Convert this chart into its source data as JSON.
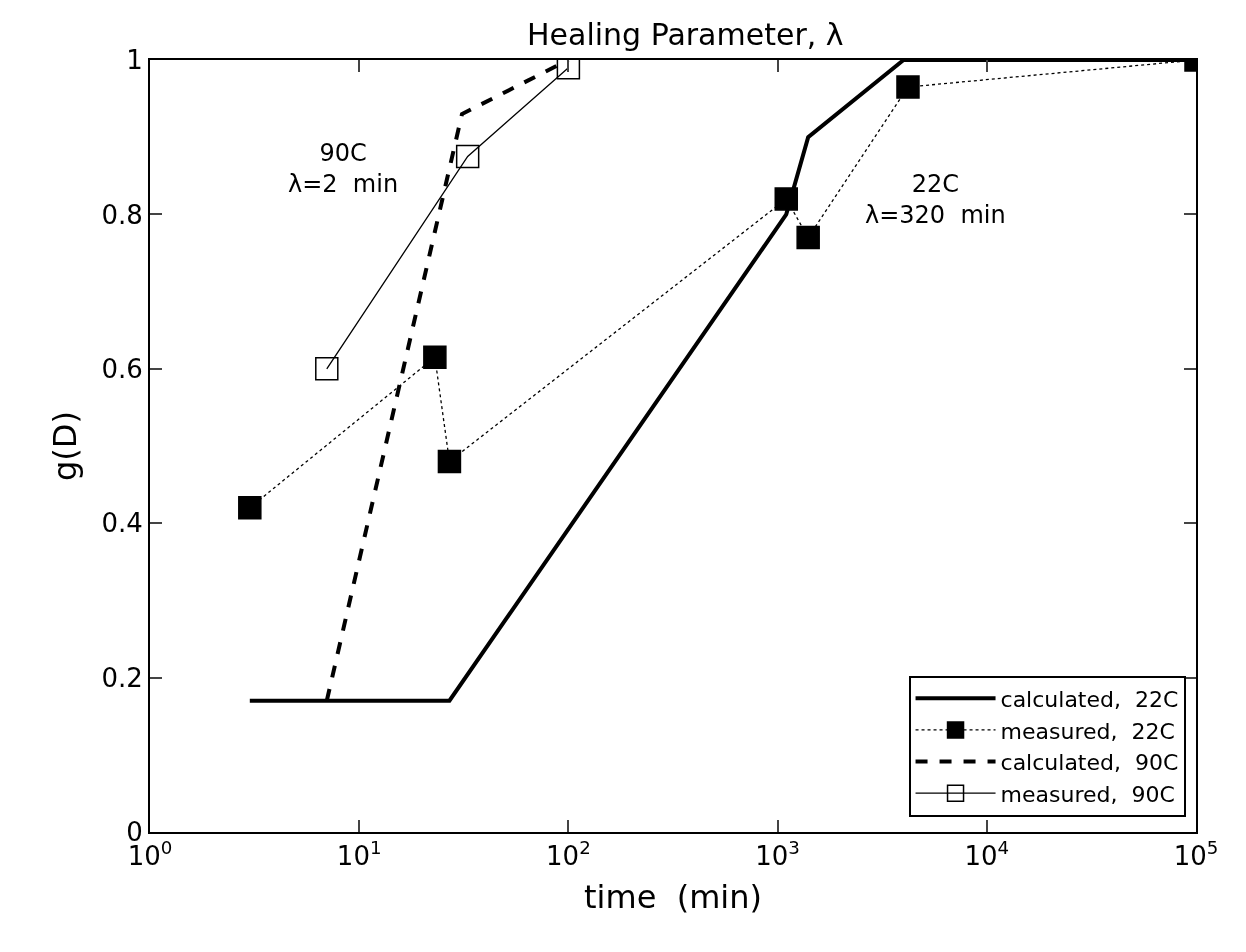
{
  "chart_data": {
    "type": "line",
    "title": "Healing Parameter, λ",
    "xlabel": "time  (min)",
    "ylabel": "g(D)",
    "log": "x",
    "xlim": [
      1,
      100000
    ],
    "xticks": [
      {
        "value": 1,
        "label": "10$^{0}$"
      },
      {
        "value": 10,
        "label": "10$^{1}$"
      },
      {
        "value": 100,
        "label": "10$^{2}$"
      },
      {
        "value": 1000,
        "label": "10$^{3}$"
      },
      {
        "value": 10000,
        "label": "10$^{4}$"
      },
      {
        "value": 100000,
        "label": "10$^{5}$"
      }
    ],
    "ylim": [
      0,
      1
    ],
    "yticks": [
      0,
      0.2,
      0.4,
      0.6,
      0.8,
      1
    ],
    "legend": "bottom right",
    "series": [
      {
        "name": "calculated,  22C",
        "color": "#000000",
        "x": [
          3,
          27,
          1100,
          1400,
          4000,
          100000
        ],
        "values": [
          0.17,
          0.17,
          0.8,
          0.9,
          1.0,
          1.0
        ],
        "marker": "none",
        "line_style": "solid"
      },
      {
        "name": "measured,  22C",
        "color": "#000000",
        "x": [
          3,
          23,
          27,
          1100,
          1400,
          4200,
          100000
        ],
        "values": [
          0.42,
          0.615,
          0.48,
          0.82,
          0.77,
          0.965,
          1.0
        ],
        "marker": "square",
        "line_style": "dotted"
      },
      {
        "name": "calculated,  90C",
        "color": "#000000",
        "x": [
          7,
          31,
          100
        ],
        "values": [
          0.17,
          0.93,
          1.0
        ],
        "marker": "none",
        "line_style": "dashed"
      },
      {
        "name": "measured,  90C",
        "color": "#000000",
        "x": [
          7,
          33,
          100
        ],
        "values": [
          0.6,
          0.875,
          0.99
        ],
        "marker": "square-open",
        "line_style": "solid"
      }
    ],
    "annotations": [
      "90C\nλ=2  min",
      "22C\nλ=320  min"
    ]
  }
}
